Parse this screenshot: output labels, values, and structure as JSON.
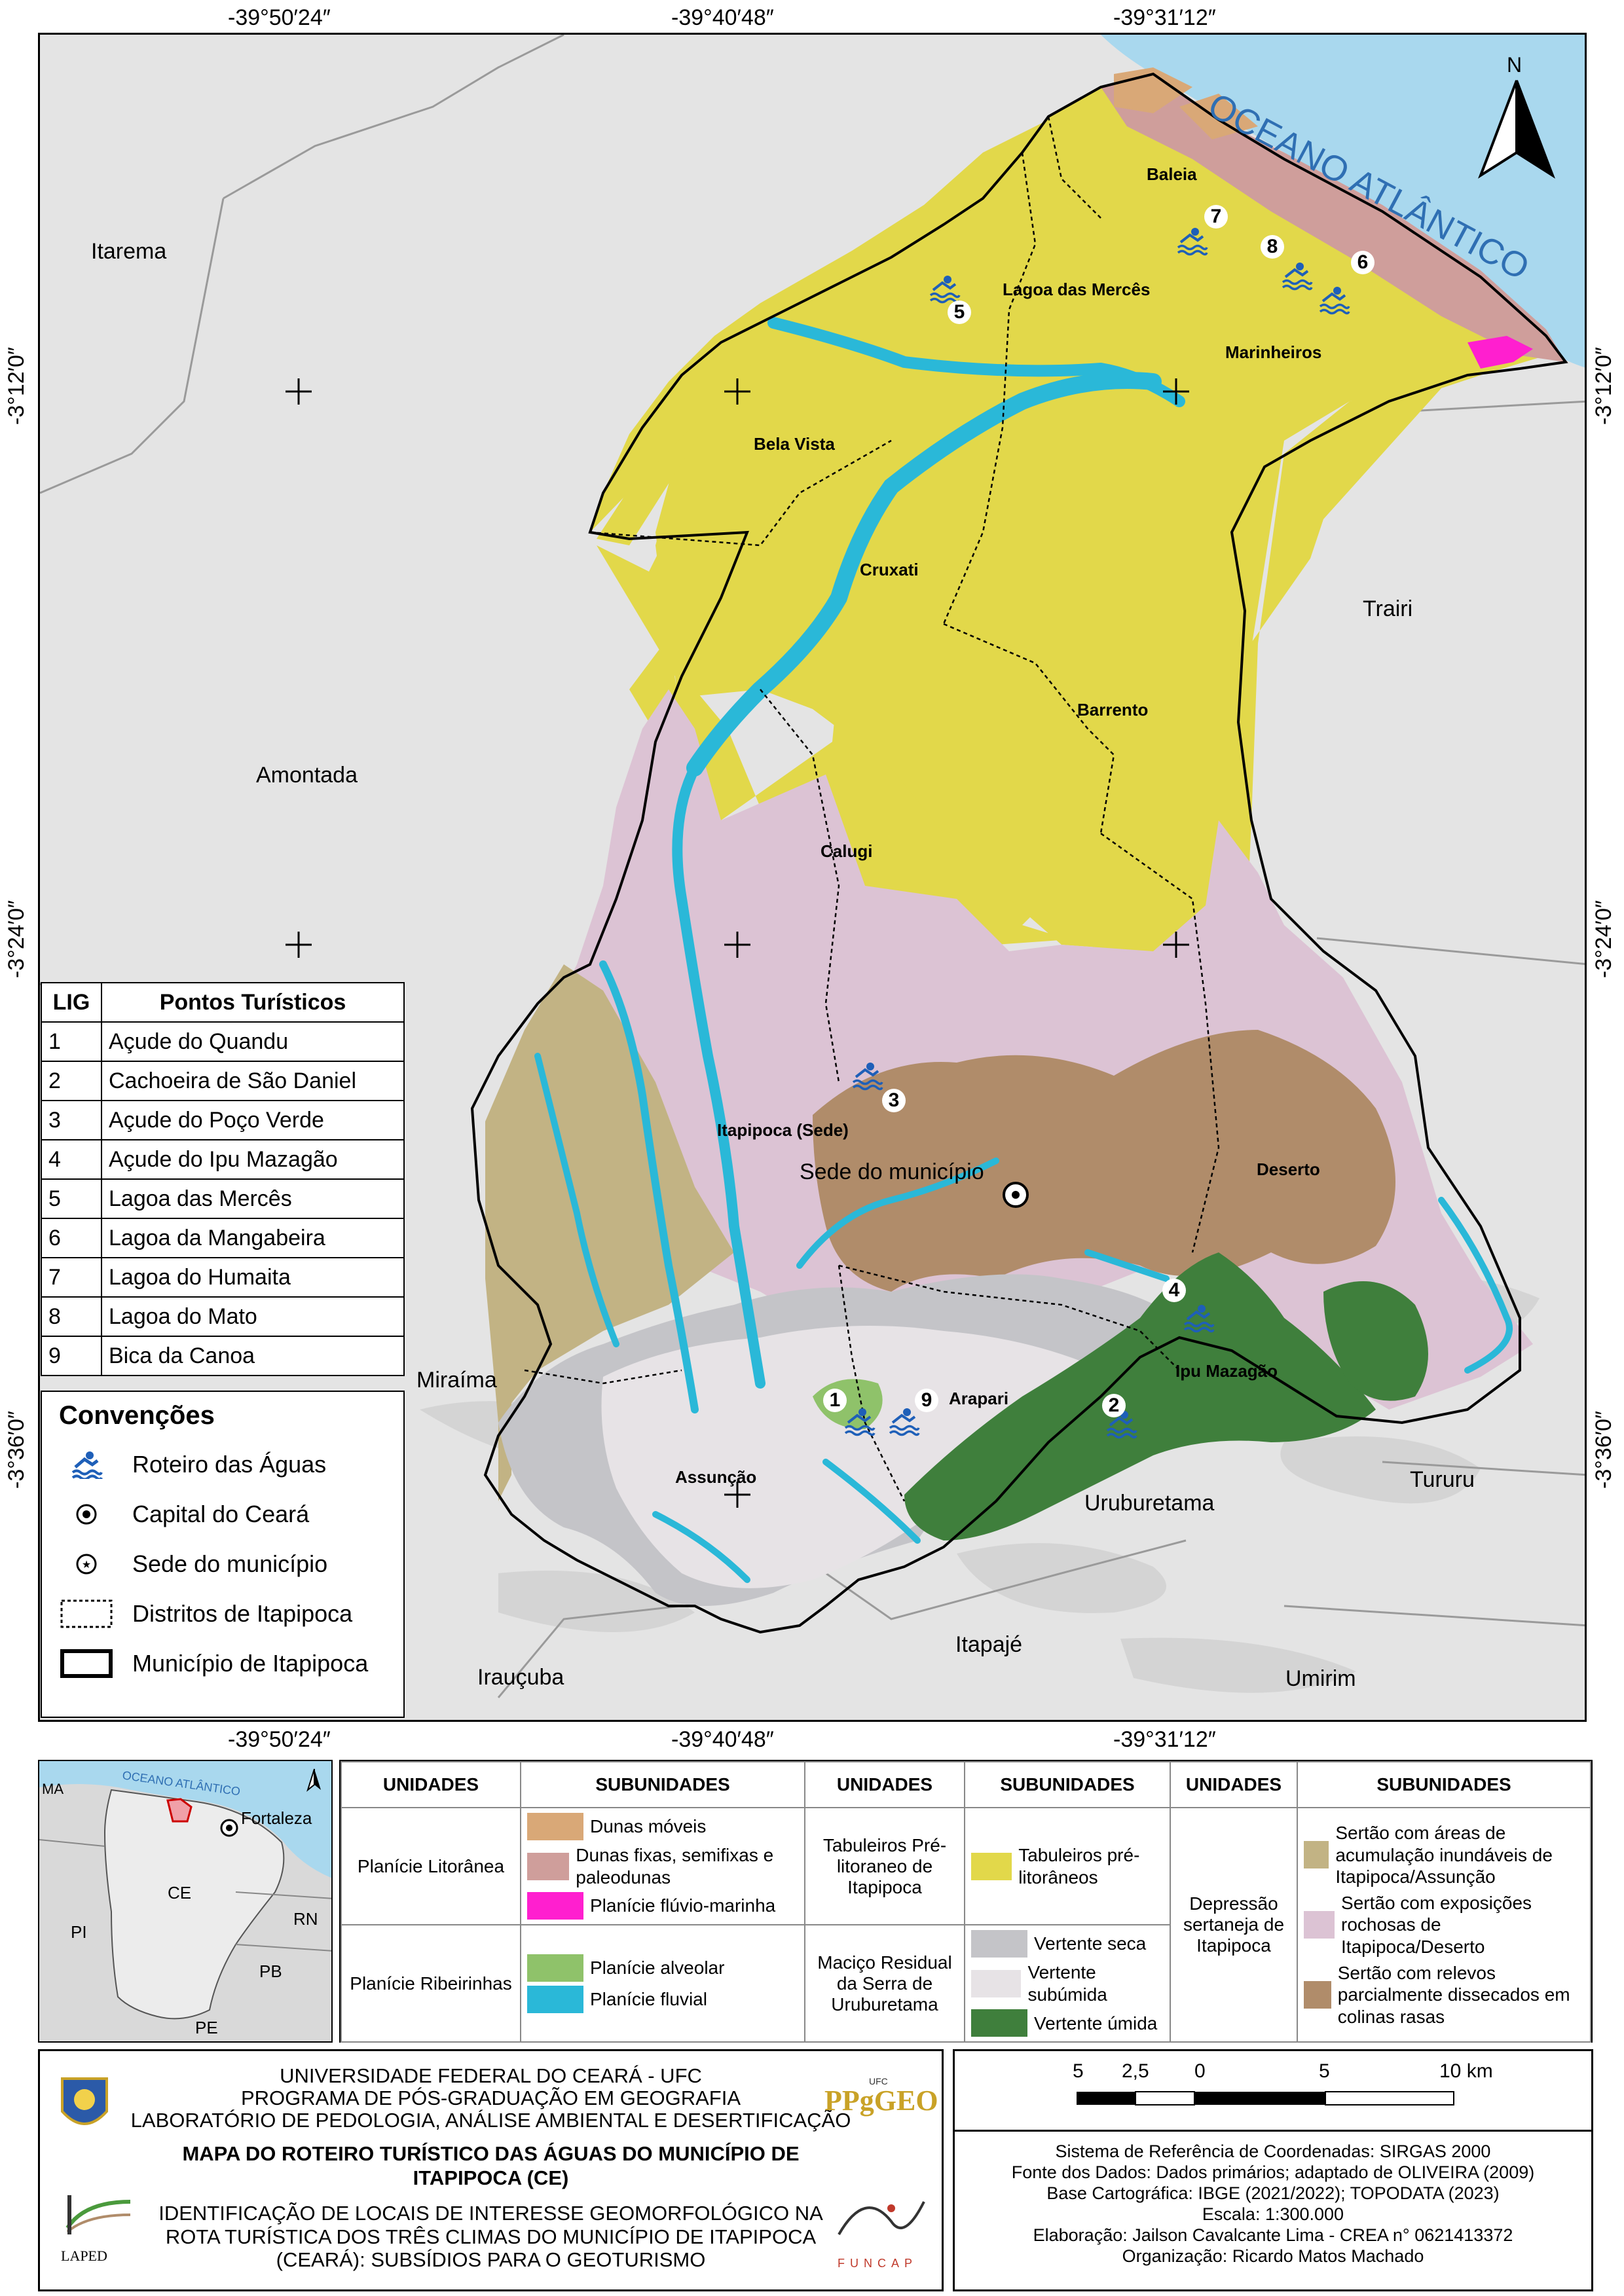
{
  "coordinates": {
    "top_lon": [
      "-39°50′24″",
      "-39°40′48″",
      "-39°31′12″"
    ],
    "bottom_lon": [
      "-39°50′24″",
      "-39°40′48″",
      "-39°31′12″"
    ],
    "left_lat": [
      "-3°12′0″",
      "-3°24′0″",
      "-3°36′0″"
    ],
    "right_lat": [
      "-3°12′0″",
      "-3°24′0″",
      "-3°36′0″"
    ]
  },
  "map": {
    "ocean_label": "OCEANO ATLÂNTICO",
    "north_label": "N",
    "municipalities": [
      "Itarema",
      "Amontada",
      "Trairi",
      "Miraíma",
      "Tururu",
      "Uruburetama",
      "Irauçuba",
      "Itapajé",
      "Umirim"
    ],
    "districts": [
      "Baleia",
      "Lagoa das Mercês",
      "Marinheiros",
      "Bela Vista",
      "Cruxati",
      "Barrento",
      "Calugi",
      "Itapipoca (Sede)",
      "Deserto",
      "Ipu Mazagão",
      "Arapari",
      "Assunção"
    ],
    "seat_label": "Sede do município",
    "point_numbers": [
      "1",
      "2",
      "3",
      "4",
      "5",
      "6",
      "7",
      "8",
      "9"
    ]
  },
  "lig_table": {
    "headers": [
      "LIG",
      "Pontos Turísticos"
    ],
    "rows": [
      {
        "id": "1",
        "name": "Açude do Quandu"
      },
      {
        "id": "2",
        "name": "Cachoeira de São Daniel"
      },
      {
        "id": "3",
        "name": "Açude do Poço Verde"
      },
      {
        "id": "4",
        "name": "Açude do Ipu Mazagão"
      },
      {
        "id": "5",
        "name": "Lagoa das Mercês"
      },
      {
        "id": "6",
        "name": "Lagoa da Mangabeira"
      },
      {
        "id": "7",
        "name": "Lagoa do Humaita"
      },
      {
        "id": "8",
        "name": "Lagoa do Mato"
      },
      {
        "id": "9",
        "name": "Bica da Canoa"
      }
    ]
  },
  "conventions": {
    "title": "Convenções",
    "items": [
      "Roteiro das Águas",
      "Capital do Ceará",
      "Sede do município",
      "Distritos de Itapipoca",
      "Município de Itapipoca"
    ]
  },
  "inset": {
    "ocean": "OCEANO ATLÂNTICO",
    "labels": [
      "MA",
      "Fortaleza",
      "CE",
      "PI",
      "RN",
      "PB",
      "PE"
    ]
  },
  "legend": {
    "headers": [
      "UNIDADES",
      "SUBUNIDADES",
      "UNIDADES",
      "SUBUNIDADES",
      "UNIDADES",
      "SUBUNIDADES"
    ],
    "units": {
      "planicie_litoranea": "Planície Litorânea",
      "planicie_ribeirinhas": "Planície Ribeirinhas",
      "tabuleiros": "Tabuleiros Pré-litoraneo de Itapipoca",
      "macico": "Maciço Residual da Serra de Uruburetama",
      "depressao": "Depressão sertaneja de Itapipoca"
    },
    "subunits": {
      "dunas_moveis": "Dunas móveis",
      "dunas_fixas": "Dunas fixas, semifixas e paleodunas",
      "planicie_fluvio_marinha": "Planície flúvio-marinha",
      "planicie_alveolar": "Planície alveolar",
      "planicie_fluvial": "Planície fluvial",
      "tabuleiros_pre": "Tabuleiros pré-litorâneos",
      "vertente_seca": "Vertente seca",
      "vertente_subumida": "Vertente subúmida",
      "vertente_umida": "Vertente úmida",
      "sertao_acumulacao": "Sertão com áreas de acumulação inundáveis de Itapipoca/Assunção",
      "sertao_exposicoes": "Sertão com exposições rochosas de Itapipoca/Deserto",
      "sertao_relevos": "Sertão com relevos parcialmente dissecados em colinas rasas"
    },
    "colors": {
      "dunas_moveis": "#d9a877",
      "dunas_fixas": "#cf9e9b",
      "planicie_fluvio_marinha": "#ff1fcf",
      "planicie_alveolar": "#8fc26a",
      "planicie_fluvial": "#2ab8d8",
      "tabuleiros_pre": "#e2d84a",
      "vertente_seca": "#c4c4c8",
      "vertente_subumida": "#e7e3e6",
      "vertente_umida": "#3f7f3c",
      "sertao_acumulacao": "#c2b384",
      "sertao_exposicoes": "#dcc3d4",
      "sertao_relevos": "#b08c6a"
    }
  },
  "institution": {
    "lines": [
      "UNIVERSIDADE FEDERAL DO CEARÁ - UFC",
      "PROGRAMA DE PÓS-GRADUAÇÃO EM GEOGRAFIA",
      "LABORATÓRIO DE PEDOLOGIA, ANÁLISE AMBIENTAL E DESERTIFICAÇÃO"
    ],
    "map_title": "MAPA DO ROTEIRO TURÍSTICO DAS ÁGUAS DO MUNICÍPIO DE ITAPIPOCA (CE)",
    "project": "IDENTIFICAÇÃO DE LOCAIS DE INTERESSE GEOMORFOLÓGICO NA ROTA TURÍSTICA DOS TRÊS CLIMAS DO MUNICÍPIO DE ITAPIPOCA (CEARÁ): SUBSÍDIOS PARA O GEOTURISMO",
    "logo_ppgeo": "PPgGEO",
    "logo_ppgeo_sub": "UFC",
    "logo_lapeo": "LAPED",
    "logo_funcap": "FUNCAP"
  },
  "scale": {
    "ticks": [
      "5",
      "2,5",
      "0",
      "5",
      "10 km"
    ]
  },
  "metadata": {
    "lines": [
      "Sistema de Referência de Coordenadas: SIRGAS 2000",
      "Fonte dos Dados:  Dados primários; adaptado de OLIVEIRA (2009)",
      "Base Cartográfica: IBGE (2021/2022); TOPODATA (2023)",
      "Escala: 1:300.000",
      "Elaboração: Jailson Cavalcante Lima - CREA  n° 0621413372",
      "Organização: Ricardo Matos Machado"
    ]
  }
}
